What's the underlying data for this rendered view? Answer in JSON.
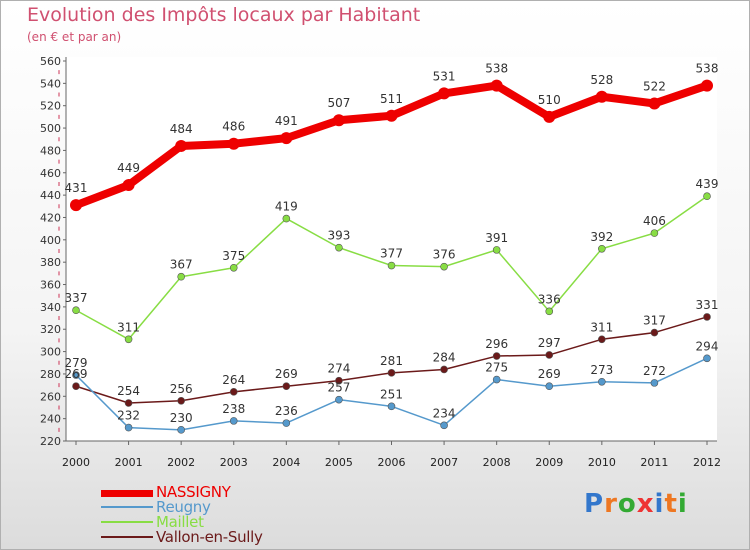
{
  "header": {
    "title": "Evolution des Impôts locaux par Habitant",
    "subtitle": "(en € et par an)"
  },
  "chart_data": {
    "type": "line",
    "x": [
      "2000",
      "2001",
      "2002",
      "2003",
      "2004",
      "2005",
      "2006",
      "2007",
      "2008",
      "2009",
      "2010",
      "2011",
      "2012"
    ],
    "ylim": [
      220,
      560
    ],
    "yticks": [
      220,
      240,
      260,
      280,
      300,
      320,
      340,
      360,
      380,
      400,
      420,
      440,
      460,
      480,
      500,
      520,
      540,
      560
    ],
    "grid": false,
    "legend_position": "bottom-left",
    "series": [
      {
        "name": "NASSIGNY",
        "color": "#ee0000",
        "values": [
          431,
          449,
          484,
          486,
          491,
          507,
          511,
          531,
          538,
          510,
          528,
          522,
          538
        ]
      },
      {
        "name": "Reugny",
        "color": "#5599cc",
        "values": [
          279,
          232,
          230,
          238,
          236,
          257,
          251,
          234,
          275,
          269,
          273,
          272,
          294
        ]
      },
      {
        "name": "Maillet",
        "color": "#88dd44",
        "values": [
          337,
          311,
          367,
          375,
          419,
          393,
          377,
          376,
          391,
          336,
          392,
          406,
          439
        ]
      },
      {
        "name": "Vallon-en-Sully",
        "color": "#6b1a1a",
        "values": [
          269,
          254,
          256,
          264,
          269,
          274,
          281,
          284,
          296,
          297,
          311,
          317,
          331
        ]
      }
    ]
  },
  "legend": {
    "items": [
      {
        "label": "NASSIGNY",
        "color": "#ee0000"
      },
      {
        "label": "Reugny",
        "color": "#5599cc"
      },
      {
        "label": "Maillet",
        "color": "#88dd44"
      },
      {
        "label": "Vallon-en-Sully",
        "color": "#6b1a1a"
      }
    ]
  },
  "logo": {
    "letters": [
      "P",
      "r",
      "o",
      "x",
      "i",
      "t",
      "i"
    ],
    "colors": [
      "#3377cc",
      "#ee7722",
      "#33aa33",
      "#ee3333",
      "#3377cc",
      "#ee7722",
      "#33aa33"
    ]
  }
}
